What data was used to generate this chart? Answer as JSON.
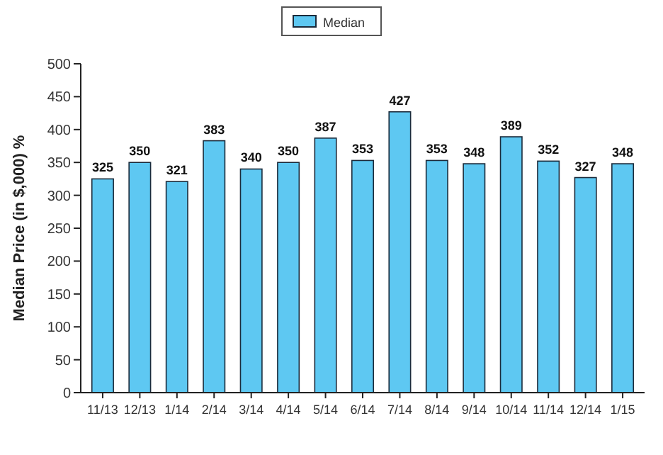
{
  "chart_data": {
    "type": "bar",
    "ylabel": "Median Price (in $,000) %",
    "categories": [
      "11/13",
      "12/13",
      "1/14",
      "2/14",
      "3/14",
      "4/14",
      "5/14",
      "6/14",
      "7/14",
      "8/14",
      "9/14",
      "10/14",
      "11/14",
      "12/14",
      "1/15"
    ],
    "series": [
      {
        "name": "Median",
        "color": "#5ec8f2",
        "values": [
          325,
          350,
          321,
          383,
          340,
          350,
          387,
          353,
          427,
          353,
          348,
          389,
          352,
          327,
          348
        ]
      }
    ],
    "ylim": [
      0,
      500
    ],
    "yticks": [
      0,
      50,
      100,
      150,
      200,
      250,
      300,
      350,
      400,
      450,
      500
    ],
    "grid": false,
    "legend": "top",
    "data_labels": true
  }
}
